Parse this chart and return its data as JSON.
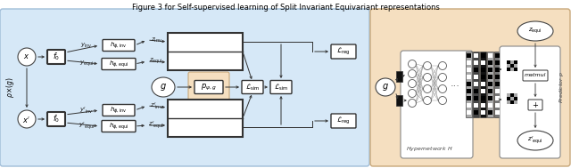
{
  "title": "Figure 3 for Self-supervised learning of Split Invariant Equivariant representations",
  "left_bg_color": "#d6e8f7",
  "right_bg_color": "#f5dfc0",
  "left_bg_edge": "#a0bdd8",
  "right_bg_edge": "#c8a87a",
  "highlight_color": "#f5dfc0",
  "highlight_edge": "#c8a87a",
  "fig_width": 6.4,
  "fig_height": 1.89
}
